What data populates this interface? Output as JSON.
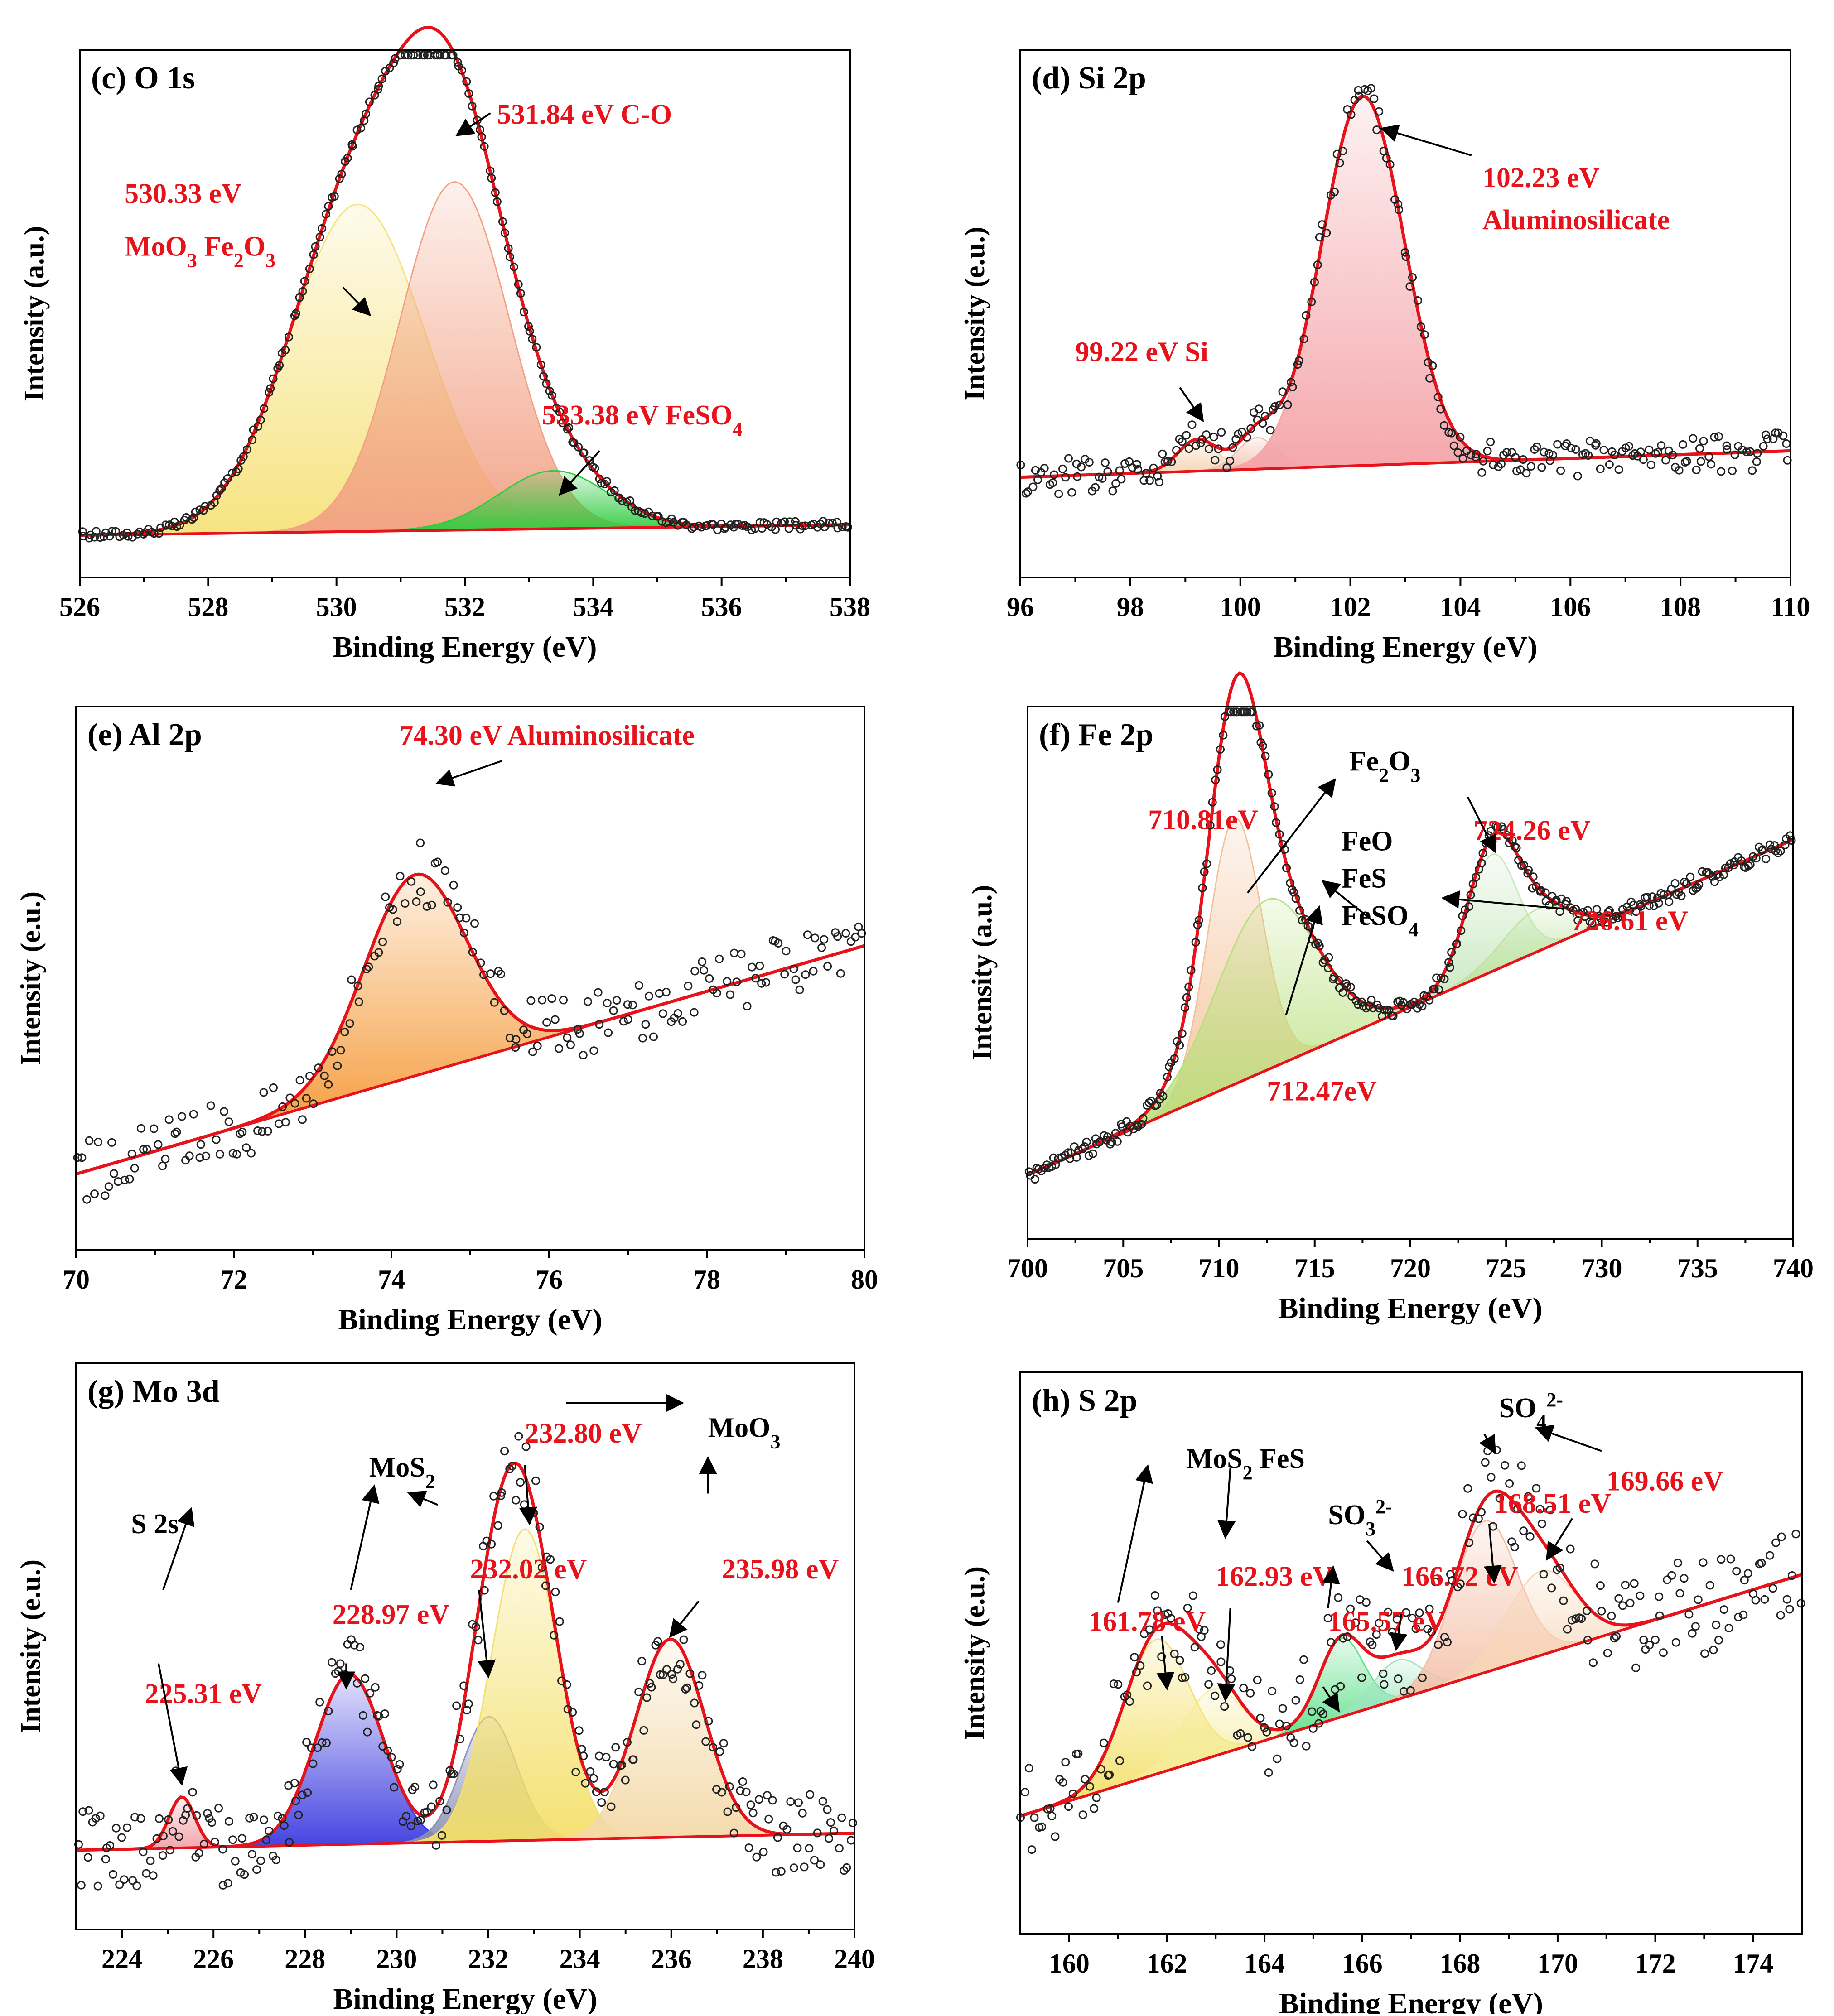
{
  "chart_data": [
    {
      "id": "c",
      "type": "line",
      "title": "(c) O 1s",
      "xlabel": "Binding Energy (eV)",
      "ylabel": "Intensity (a.u.)",
      "xlim": [
        526,
        538
      ],
      "xticks": [
        526,
        528,
        530,
        532,
        534,
        536,
        538
      ],
      "ylim": [
        0,
        1
      ],
      "baseline": [
        0.08,
        0.1
      ],
      "components": [
        {
          "center": 530.33,
          "height": 0.62,
          "width": 1.05,
          "color": "#f6e27a"
        },
        {
          "center": 531.84,
          "height": 0.66,
          "width": 0.85,
          "color": "#f2a184"
        },
        {
          "center": 533.38,
          "height": 0.11,
          "width": 0.85,
          "color": "#2ecc40"
        }
      ],
      "annotations": [
        {
          "text": "530.33 eV",
          "color": "red",
          "x": 526.7,
          "y": 0.71
        },
        {
          "text": "MoO3 Fe2O3",
          "color": "red",
          "x": 526.7,
          "y": 0.61
        },
        {
          "text": "531.84 eV C-O",
          "color": "red",
          "x": 532.5,
          "y": 0.86
        },
        {
          "text": "533.38 eV FeSO4",
          "color": "red",
          "x": 533.2,
          "y": 0.29
        }
      ]
    },
    {
      "id": "d",
      "type": "line",
      "title": "(d) Si 2p",
      "xlabel": "Binding Energy (eV)",
      "ylabel": "Intensity (e.u.)",
      "xlim": [
        96,
        110
      ],
      "xticks": [
        96,
        98,
        100,
        102,
        104,
        106,
        108,
        110
      ],
      "ylim": [
        0,
        1
      ],
      "baseline": [
        0.19,
        0.24
      ],
      "components": [
        {
          "center": 99.22,
          "height": 0.06,
          "width": 0.35,
          "color": "#f4d6b5"
        },
        {
          "center": 100.3,
          "height": 0.06,
          "width": 0.35,
          "color": "#f4c1b2"
        },
        {
          "center": 102.23,
          "height": 0.7,
          "width": 0.75,
          "color": "#f4a3a8"
        }
      ],
      "annotations": [
        {
          "text": "99.22 eV Si",
          "color": "red",
          "x": 97.0,
          "y": 0.41
        },
        {
          "text": "102.23 eV",
          "color": "red",
          "x": 104.4,
          "y": 0.74
        },
        {
          "text": "Aluminosilicate",
          "color": "red",
          "x": 104.4,
          "y": 0.66
        }
      ]
    },
    {
      "id": "e",
      "type": "line",
      "title": "(e) Al 2p",
      "xlabel": "Binding Energy (eV)",
      "ylabel": "Intensity (e.u.)",
      "xlim": [
        70,
        80
      ],
      "xticks": [
        70,
        72,
        74,
        76,
        78,
        80
      ],
      "ylim": [
        0,
        1
      ],
      "baseline": [
        0.14,
        0.56
      ],
      "components": [
        {
          "center": 74.3,
          "height": 0.37,
          "width": 0.65,
          "color": "#f59a3a"
        }
      ],
      "annotations": [
        {
          "text": "74.30 eV Aluminosilicate",
          "color": "red",
          "x": 74.1,
          "y": 0.93
        }
      ]
    },
    {
      "id": "f",
      "type": "line",
      "title": "(f) Fe 2p",
      "xlabel": "Binding Energy (eV)",
      "ylabel": "Intensity (a.u.)",
      "xlim": [
        700,
        740
      ],
      "xticks": [
        700,
        705,
        710,
        715,
        720,
        725,
        730,
        735,
        740
      ],
      "ylim": [
        0,
        1
      ],
      "baseline": [
        0.12,
        0.75
      ],
      "components": [
        {
          "center": 710.81,
          "height": 0.5,
          "width": 1.4,
          "color": "#f4c29a"
        },
        {
          "center": 712.47,
          "height": 0.32,
          "width": 2.6,
          "color": "#b7e07a"
        },
        {
          "center": 724.26,
          "height": 0.22,
          "width": 1.3,
          "color": "#c8e8c0"
        },
        {
          "center": 726.61,
          "height": 0.08,
          "width": 1.8,
          "color": "#bfe3a0"
        }
      ],
      "annotations": [
        {
          "text": "710.81eV",
          "color": "red",
          "x": 706.3,
          "y": 0.77
        },
        {
          "text": "Fe2O3",
          "color": "black",
          "x": 716.8,
          "y": 0.88
        },
        {
          "text": "FeO",
          "color": "black",
          "x": 716.4,
          "y": 0.73
        },
        {
          "text": "FeS",
          "color": "black",
          "x": 716.4,
          "y": 0.66
        },
        {
          "text": "FeSO4",
          "color": "black",
          "x": 716.4,
          "y": 0.59
        },
        {
          "text": "724.26 eV",
          "color": "red",
          "x": 723.3,
          "y": 0.75
        },
        {
          "text": "726.61 eV",
          "color": "red",
          "x": 728.4,
          "y": 0.58
        },
        {
          "text": "712.47eV",
          "color": "red",
          "x": 712.5,
          "y": 0.26
        }
      ]
    },
    {
      "id": "g",
      "type": "line",
      "title": "(g) Mo 3d",
      "xlabel": "Binding Energy (eV)",
      "ylabel": "Intensity (e.u.)",
      "xlim": [
        223,
        240
      ],
      "xticks": [
        224,
        226,
        228,
        230,
        232,
        234,
        236,
        238,
        240
      ],
      "ylim": [
        0,
        1
      ],
      "baseline": [
        0.14,
        0.17
      ],
      "components": [
        {
          "center": 225.31,
          "height": 0.09,
          "width": 0.28,
          "color": "#f2a1a8"
        },
        {
          "center": 228.97,
          "height": 0.3,
          "width": 0.75,
          "color": "#3a3ae0"
        },
        {
          "center": 232.02,
          "height": 0.22,
          "width": 0.6,
          "color": "#8a8fb4"
        },
        {
          "center": 232.8,
          "height": 0.55,
          "width": 0.72,
          "color": "#f4e06a"
        },
        {
          "center": 235.98,
          "height": 0.35,
          "width": 0.75,
          "color": "#f4d9a8"
        }
      ],
      "annotations": [
        {
          "text": "S 2s",
          "color": "black",
          "x": 224.2,
          "y": 0.7
        },
        {
          "text": "225.31 eV",
          "color": "red",
          "x": 224.5,
          "y": 0.4
        },
        {
          "text": "MoS2",
          "color": "black",
          "x": 229.4,
          "y": 0.8
        },
        {
          "text": "228.97 eV",
          "color": "red",
          "x": 228.6,
          "y": 0.54
        },
        {
          "text": "232.02 eV",
          "color": "red",
          "x": 231.6,
          "y": 0.62
        },
        {
          "text": "232.80 eV",
          "color": "red",
          "x": 232.8,
          "y": 0.86
        },
        {
          "text": "MoO3",
          "color": "black",
          "x": 236.8,
          "y": 0.87
        },
        {
          "text": "235.98 eV",
          "color": "red",
          "x": 237.1,
          "y": 0.62
        }
      ]
    },
    {
      "id": "h",
      "type": "line",
      "title": "(h) S 2p",
      "xlabel": "Binding Energy (eV)",
      "ylabel": "Intensity (e.u.)",
      "xlim": [
        159,
        175
      ],
      "xticks": [
        160,
        162,
        164,
        166,
        168,
        170,
        172,
        174
      ],
      "ylim": [
        0,
        1
      ],
      "baseline": [
        0.21,
        0.64
      ],
      "components": [
        {
          "center": 161.78,
          "height": 0.24,
          "width": 0.65,
          "color": "#f4e06a"
        },
        {
          "center": 162.93,
          "height": 0.12,
          "width": 0.6,
          "color": "#f6ec9a"
        },
        {
          "center": 165.57,
          "height": 0.14,
          "width": 0.45,
          "color": "#5fe08a"
        },
        {
          "center": 166.72,
          "height": 0.07,
          "width": 0.5,
          "color": "#9ee6c0"
        },
        {
          "center": 168.51,
          "height": 0.27,
          "width": 0.65,
          "color": "#f4c0a8"
        },
        {
          "center": 169.66,
          "height": 0.15,
          "width": 0.7,
          "color": "#f7d7b8"
        }
      ],
      "annotations": [
        {
          "text": "MoS2 FeS",
          "color": "black",
          "x": 162.4,
          "y": 0.83
        },
        {
          "text": "161.78 eV",
          "color": "red",
          "x": 160.4,
          "y": 0.54
        },
        {
          "text": "162.93 eV",
          "color": "red",
          "x": 163.0,
          "y": 0.62
        },
        {
          "text": "SO3 2-",
          "color": "black",
          "x": 165.3,
          "y": 0.73
        },
        {
          "text": "165.57 eV",
          "color": "red",
          "x": 165.3,
          "y": 0.54
        },
        {
          "text": "166.72 eV",
          "color": "red",
          "x": 166.8,
          "y": 0.62
        },
        {
          "text": "SO4 2-",
          "color": "black",
          "x": 168.8,
          "y": 0.92
        },
        {
          "text": "168.51 eV",
          "color": "red",
          "x": 168.7,
          "y": 0.75
        },
        {
          "text": "169.66 eV",
          "color": "red",
          "x": 171.0,
          "y": 0.79
        }
      ]
    }
  ]
}
